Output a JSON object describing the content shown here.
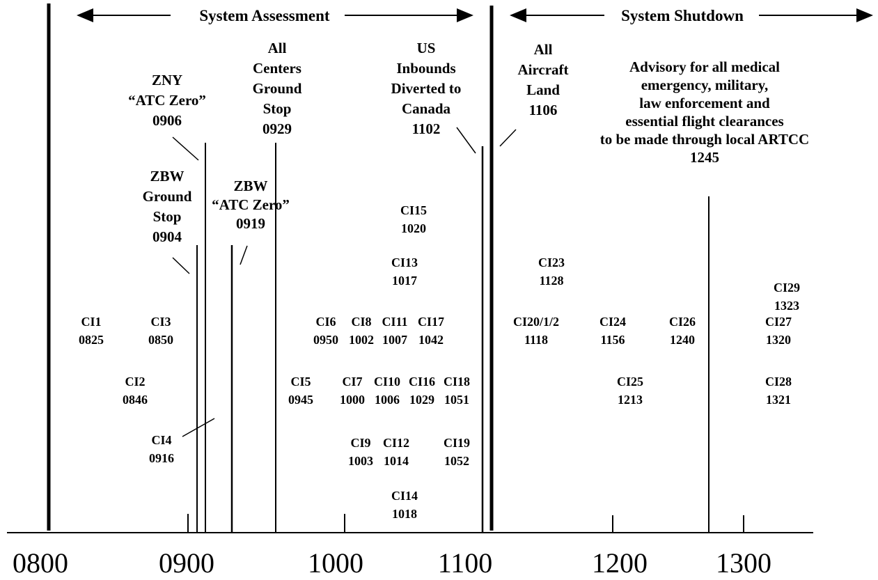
{
  "sections": [
    {
      "label": "System Assessment"
    },
    {
      "label": "System Shutdown"
    }
  ],
  "axis": {
    "labels": [
      "0800",
      "0900",
      "1000",
      "1100",
      "1200",
      "1300"
    ]
  },
  "events": [
    {
      "lines": [
        "ZNY",
        "“ATC Zero”"
      ],
      "time": "0906"
    },
    {
      "lines": [
        "All",
        "Centers",
        "Ground",
        "Stop"
      ],
      "time": "0929"
    },
    {
      "lines": [
        "US",
        "Inbounds",
        "Diverted to",
        "Canada"
      ],
      "time": "1102"
    },
    {
      "lines": [
        "All",
        "Aircraft",
        "Land"
      ],
      "time": "1106"
    },
    {
      "lines": [
        "Advisory for all medical",
        "emergency, military,",
        "law enforcement and",
        "essential flight clearances",
        "to be made through local ARTCC"
      ],
      "time": "1245"
    },
    {
      "lines": [
        "ZBW",
        "Ground",
        "Stop"
      ],
      "time": "0904"
    },
    {
      "lines": [
        "ZBW",
        "“ATC Zero”"
      ],
      "time": "0919"
    }
  ],
  "checkpoints": [
    {
      "label": "CI1",
      "time": "0825"
    },
    {
      "label": "CI3",
      "time": "0850"
    },
    {
      "label": "CI2",
      "time": "0846"
    },
    {
      "label": "CI4",
      "time": "0916"
    },
    {
      "label": "CI5",
      "time": "0945"
    },
    {
      "label": "CI6",
      "time": "0950"
    },
    {
      "label": "CI8",
      "time": "1002"
    },
    {
      "label": "CI11",
      "time": "1007"
    },
    {
      "label": "CI17",
      "time": "1042"
    },
    {
      "label": "CI7",
      "time": "1000"
    },
    {
      "label": "CI10",
      "time": "1006"
    },
    {
      "label": "CI16",
      "time": "1029"
    },
    {
      "label": "CI18",
      "time": "1051"
    },
    {
      "label": "CI9",
      "time": "1003"
    },
    {
      "label": "CI12",
      "time": "1014"
    },
    {
      "label": "CI19",
      "time": "1052"
    },
    {
      "label": "CI14",
      "time": "1018"
    },
    {
      "label": "CI15",
      "time": "1020"
    },
    {
      "label": "CI13",
      "time": "1017"
    },
    {
      "label": "CI23",
      "time": "1128"
    },
    {
      "label": "CI20/1/2",
      "time": "1118"
    },
    {
      "label": "CI24",
      "time": "1156"
    },
    {
      "label": "CI26",
      "time": "1240"
    },
    {
      "label": "CI27",
      "time": "1320"
    },
    {
      "label": "CI29",
      "time": "1323"
    },
    {
      "label": "CI25",
      "time": "1213"
    },
    {
      "label": "CI28",
      "time": "1321"
    }
  ]
}
